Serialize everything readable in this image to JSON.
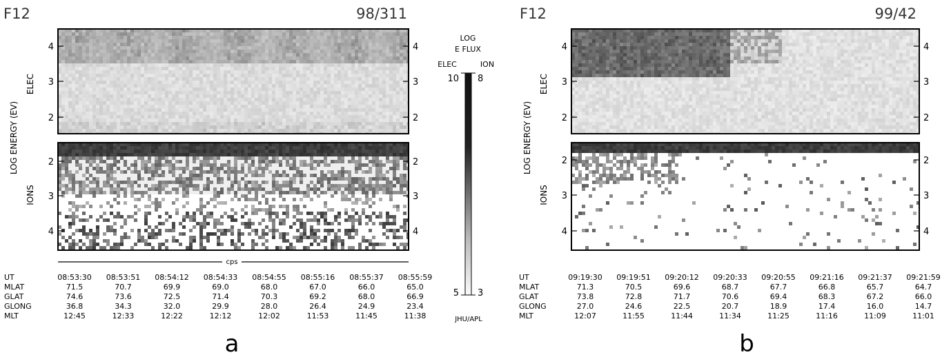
{
  "chart_data": [
    {
      "type": "heatmap",
      "satellite": "F12",
      "date": "98/311",
      "subfigure": "a",
      "ylabel": "LOG ENERGY (EV)",
      "elec_label": "ELEC",
      "ions_label": "IONS",
      "elec_yticks": [
        "4",
        "3",
        "2"
      ],
      "ions_yticks": [
        "2",
        "3",
        "4"
      ],
      "elec_ylim": [
        1.6,
        4.5
      ],
      "ions_ylim": [
        1.5,
        4.6
      ],
      "xaxis_label": "cps",
      "ephemeris": {
        "row_labels": [
          "UT",
          "MLAT",
          "GLAT",
          "GLONG",
          "MLT"
        ],
        "UT": [
          "08:53:30",
          "08:53:51",
          "08:54:12",
          "08:54:33",
          "08:54:55",
          "08:55:16",
          "08:55:37",
          "08:55:59"
        ],
        "MLAT": [
          "71.5",
          "70.7",
          "69.9",
          "69.0",
          "68.0",
          "67.0",
          "66.0",
          "65.0"
        ],
        "GLAT": [
          "74.6",
          "73.6",
          "72.5",
          "71.4",
          "70.3",
          "69.2",
          "68.0",
          "66.9"
        ],
        "GLONG": [
          "36.8",
          "34.3",
          "32.0",
          "29.9",
          "28.0",
          "26.4",
          "24.9",
          "23.4"
        ],
        "MLT": [
          "12:45",
          "12:33",
          "12:22",
          "12:12",
          "12:02",
          "11:53",
          "11:45",
          "11:38"
        ]
      }
    },
    {
      "type": "heatmap",
      "satellite": "F12",
      "date": "99/42",
      "subfigure": "b",
      "ylabel": "LOG ENERGY (EV)",
      "elec_label": "ELEC",
      "ions_label": "IONS",
      "elec_yticks": [
        "4",
        "3",
        "2"
      ],
      "ions_yticks": [
        "2",
        "3",
        "4"
      ],
      "elec_ylim": [
        1.6,
        4.5
      ],
      "ions_ylim": [
        1.5,
        4.6
      ],
      "ephemeris": {
        "row_labels": [
          "UT",
          "MLAT",
          "GLAT",
          "GLONG",
          "MLT"
        ],
        "UT": [
          "09:19:30",
          "09:19:51",
          "09:20:12",
          "09:20:33",
          "09:20:55",
          "09:21:16",
          "09:21:37",
          "09:21:59"
        ],
        "MLAT": [
          "71.3",
          "70.5",
          "69.6",
          "68.7",
          "67.7",
          "66.8",
          "65.7",
          "64.7"
        ],
        "GLAT": [
          "73.8",
          "72.8",
          "71.7",
          "70.6",
          "69.4",
          "68.3",
          "67.2",
          "66.0"
        ],
        "GLONG": [
          "27.0",
          "24.6",
          "22.5",
          "20.7",
          "18.9",
          "17.4",
          "16.0",
          "14.7"
        ],
        "MLT": [
          "12:07",
          "11:55",
          "11:44",
          "11:34",
          "11:25",
          "11:16",
          "11:09",
          "11:01"
        ]
      }
    }
  ],
  "colorbar": {
    "title_line1": "LOG",
    "title_line2": "E FLUX",
    "elec_label": "ELEC",
    "ion_label": "ION",
    "elec_max": "10",
    "ion_max": "8",
    "elec_min": "5",
    "ion_min": "3",
    "credit": "JHU/APL",
    "elec_range": [
      5,
      10
    ],
    "ion_range": [
      3,
      8
    ]
  }
}
